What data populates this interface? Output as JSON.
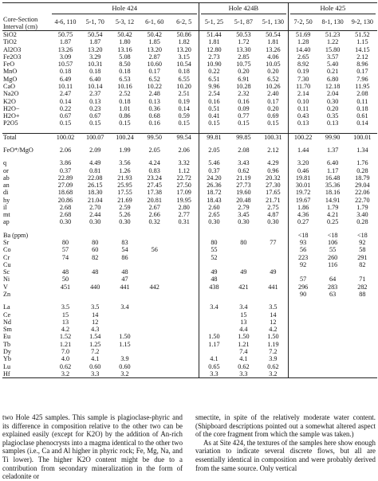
{
  "table": {
    "header_label_lines": [
      "Core-Section",
      "Interval (cm)"
    ],
    "hole_groups": [
      {
        "label": "Hole 424",
        "samples": [
          "4-6, 110",
          "5-1, 70",
          "5-3, 12",
          "6-1, 60",
          "6-2, 5"
        ]
      },
      {
        "label": "Hole 424B",
        "samples": [
          "5-1, 25",
          "5-1, 87",
          "5-1, 130"
        ]
      },
      {
        "label": "Hole 425",
        "samples": [
          "7-2, 50",
          "8-1, 130",
          "9-2, 130"
        ]
      }
    ],
    "sections": [
      [
        {
          "label": "SiO2",
          "values": [
            "50.75",
            "50.54",
            "50.42",
            "50.42",
            "50.86",
            "51.44",
            "50.53",
            "50.54",
            "51.69",
            "51.23",
            "51.52"
          ]
        },
        {
          "label": "TiO2",
          "values": [
            "1.87",
            "1.87",
            "1.80",
            "1.85",
            "1.82",
            "1.81",
            "1.72",
            "1.81",
            "1.28",
            "1.22",
            "1.15"
          ]
        },
        {
          "label": "Al2O3",
          "values": [
            "13.26",
            "13.20",
            "13.16",
            "13.20",
            "13.20",
            "12.80",
            "13.30",
            "13.26",
            "14.40",
            "15.80",
            "14.15"
          ]
        },
        {
          "label": "Fe2O3",
          "values": [
            "3.09",
            "3.29",
            "5.08",
            "2.87",
            "3.15",
            "2.73",
            "2.85",
            "4.06",
            "2.65",
            "3.57",
            "2.12"
          ]
        },
        {
          "label": "FeO",
          "values": [
            "10.57",
            "10.31",
            "8.50",
            "10.60",
            "10.54",
            "10.90",
            "10.75",
            "10.05",
            "8.92",
            "5.40",
            "8.96"
          ]
        },
        {
          "label": "MnO",
          "values": [
            "0.18",
            "0.18",
            "0.18",
            "0.17",
            "0.18",
            "0.22",
            "0.20",
            "0.20",
            "0.19",
            "0.21",
            "0.17"
          ]
        },
        {
          "label": "MgO",
          "values": [
            "6.49",
            "6.40",
            "6.53",
            "6.52",
            "6.55",
            "6.51",
            "6.91",
            "6.52",
            "7.30",
            "6.80",
            "7.96"
          ]
        },
        {
          "label": "CaO",
          "values": [
            "10.11",
            "10.14",
            "10.16",
            "10.22",
            "10.20",
            "9.96",
            "10.28",
            "10.26",
            "11.70",
            "12.18",
            "11.95"
          ]
        },
        {
          "label": "Na2O",
          "values": [
            "2.47",
            "2.37",
            "2.52",
            "2.48",
            "2.51",
            "2.54",
            "2.32",
            "2.40",
            "2.14",
            "2.04",
            "2.08"
          ]
        },
        {
          "label": "K2O",
          "values": [
            "0.14",
            "0.13",
            "0.18",
            "0.13",
            "0.19",
            "0.16",
            "0.16",
            "0.17",
            "0.10",
            "0.30",
            "0.11"
          ]
        },
        {
          "label": "H2O−",
          "values": [
            "0.22",
            "0.23",
            "1.01",
            "0.36",
            "0.14",
            "0.51",
            "0.09",
            "0.20",
            "0.11",
            "0.20",
            "0.18"
          ]
        },
        {
          "label": "H2O+",
          "values": [
            "0.67",
            "0.67",
            "0.86",
            "0.68",
            "0.59",
            "0.41",
            "0.77",
            "0.69",
            "0.43",
            "0.35",
            "0.61"
          ]
        },
        {
          "label": "P2O5",
          "values": [
            "0.15",
            "0.15",
            "0.15",
            "0.16",
            "0.15",
            "0.15",
            "0.15",
            "0.15",
            "0.13",
            "0.13",
            "0.14"
          ]
        }
      ],
      [
        {
          "label": "Total",
          "values": [
            "100.02",
            "100.07",
            "100.24",
            "99.50",
            "99.54",
            "99.81",
            "99.85",
            "100.31",
            "100.22",
            "99.90",
            "100.01"
          ]
        }
      ],
      [
        {
          "label": "FeO*/MgO",
          "values": [
            "2.06",
            "2.09",
            "1.99",
            "2.05",
            "2.06",
            "2.05",
            "2.08",
            "2.12",
            "1.44",
            "1.37",
            "1.34"
          ]
        }
      ],
      [
        {
          "label": "q",
          "values": [
            "3.86",
            "4.49",
            "3.56",
            "4.24",
            "3.32",
            "5.46",
            "3.43",
            "4.29",
            "3.20",
            "6.40",
            "1.76"
          ]
        },
        {
          "label": "or",
          "values": [
            "0.37",
            "0.81",
            "1.26",
            "0.83",
            "1.12",
            "0.37",
            "0.62",
            "0.96",
            "0.46",
            "1.17",
            "0.28"
          ]
        },
        {
          "label": "ab",
          "values": [
            "22.89",
            "22.08",
            "21.93",
            "23.24",
            "22.72",
            "24.20",
            "21.19",
            "20.32",
            "19.81",
            "16.48",
            "18.79"
          ]
        },
        {
          "label": "an",
          "values": [
            "27.09",
            "26.15",
            "25.95",
            "27.45",
            "27.50",
            "26.36",
            "27.73",
            "27.30",
            "30.01",
            "35.36",
            "29.04"
          ]
        },
        {
          "label": "di",
          "values": [
            "18.68",
            "18.30",
            "17.55",
            "17.38",
            "17.09",
            "18.72",
            "19.60",
            "17.65",
            "19.72",
            "18.16",
            "22.06"
          ]
        },
        {
          "label": "hy",
          "values": [
            "20.86",
            "21.04",
            "21.69",
            "20.81",
            "19.95",
            "18.43",
            "20.48",
            "21.71",
            "19.67",
            "14.91",
            "22.70"
          ]
        },
        {
          "label": "il",
          "values": [
            "2.68",
            "2.70",
            "2.59",
            "2.67",
            "2.80",
            "2.60",
            "2.79",
            "2.75",
            "1.86",
            "1.79",
            "1.79"
          ]
        },
        {
          "label": "mt",
          "values": [
            "2.68",
            "2.44",
            "5.26",
            "2.66",
            "2.77",
            "2.65",
            "3.45",
            "4.87",
            "4.36",
            "4.21",
            "3.40"
          ]
        },
        {
          "label": "ap",
          "values": [
            "0.30",
            "0.30",
            "0.30",
            "0.32",
            "0.31",
            "0.30",
            "0.30",
            "0.30",
            "0.27",
            "0.25",
            "0.28"
          ]
        }
      ],
      [
        {
          "label": "Ba (ppm)",
          "values": [
            "",
            "",
            "",
            "",
            "",
            "",
            "",
            "",
            "<18",
            "<18",
            "<18"
          ]
        },
        {
          "label": "Sr",
          "values": [
            "80",
            "80",
            "83",
            "",
            "",
            "80",
            "80",
            "77",
            "93",
            "106",
            "92"
          ]
        },
        {
          "label": "Co",
          "values": [
            "57",
            "60",
            "54",
            "56",
            "",
            "55",
            "",
            "",
            "56",
            "55",
            "58"
          ]
        },
        {
          "label": "Cr",
          "values": [
            "74",
            "82",
            "86",
            "",
            "",
            "52",
            "",
            "",
            "223",
            "260",
            "291"
          ]
        },
        {
          "label": "Cu",
          "values": [
            "",
            "",
            "",
            "",
            "",
            "",
            "",
            "",
            "92",
            "116",
            "82"
          ]
        },
        {
          "label": "Sc",
          "values": [
            "48",
            "48",
            "48",
            "",
            "",
            "49",
            "49",
            "49",
            "",
            "",
            ""
          ]
        },
        {
          "label": "Ni",
          "values": [
            "50",
            "",
            "47",
            "",
            "",
            "48",
            "",
            "",
            "57",
            "64",
            "71"
          ]
        },
        {
          "label": "V",
          "values": [
            "451",
            "440",
            "441",
            "442",
            "",
            "438",
            "421",
            "441",
            "296",
            "283",
            "282"
          ]
        },
        {
          "label": "Zn",
          "values": [
            "",
            "",
            "",
            "",
            "",
            "",
            "",
            "",
            "90",
            "63",
            "88"
          ]
        }
      ],
      [
        {
          "label": "La",
          "values": [
            "3.5",
            "3.5",
            "3.4",
            "",
            "",
            "3.4",
            "3.4",
            "3.5",
            "",
            "",
            ""
          ]
        },
        {
          "label": "Ce",
          "values": [
            "15",
            "14",
            "",
            "",
            "",
            "",
            "15",
            "14",
            "",
            "",
            ""
          ]
        },
        {
          "label": "Nd",
          "values": [
            "13",
            "12",
            "",
            "",
            "",
            "",
            "13",
            "12",
            "",
            "",
            ""
          ]
        },
        {
          "label": "Sm",
          "values": [
            "4.2",
            "4.3",
            "",
            "",
            "",
            "",
            "4.4",
            "4.2",
            "",
            "",
            ""
          ]
        },
        {
          "label": "Eu",
          "values": [
            "1.52",
            "1.54",
            "1.50",
            "",
            "",
            "1.50",
            "1.50",
            "1.50",
            "",
            "",
            ""
          ]
        },
        {
          "label": "Tb",
          "values": [
            "1.21",
            "1.25",
            "1.15",
            "",
            "",
            "1.17",
            "1.21",
            "1.19",
            "",
            "",
            ""
          ]
        },
        {
          "label": "Dy",
          "values": [
            "7.0",
            "7.2",
            "",
            "",
            "",
            "",
            "7.4",
            "7.2",
            "",
            "",
            ""
          ]
        },
        {
          "label": "Yb",
          "values": [
            "4.0",
            "4.1",
            "3.9",
            "",
            "",
            "4.1",
            "4.1",
            "3.9",
            "",
            "",
            ""
          ]
        },
        {
          "label": "Lu",
          "values": [
            "0.62",
            "0.60",
            "0.60",
            "",
            "",
            "0.65",
            "0.62",
            "0.62",
            "",
            "",
            ""
          ]
        },
        {
          "label": "Hf",
          "values": [
            "3.2",
            "3.3",
            "3.2",
            "",
            "",
            "3.3",
            "3.3",
            "3.2",
            "",
            "",
            ""
          ]
        }
      ]
    ]
  },
  "body": {
    "left_paragraph": "two Hole 425 samples. This sample is plagioclase-phyric and its difference in composition relative to the other two can be explained easily (except for K2O) by the addition of An-rich plagioclase phenocrysts into a magma identical to the other two samples (i.e., Ca and Al higher in phyric rock; Fe, Mg, Na, and Ti lower). The higher K2O content might be due to a contribution from secondary mineralization in the form of celadonite or",
    "right_paragraph_1": "smectite, in spite of the relatively moderate water content. (Shipboard descriptions pointed out a somewhat altered aspect of the core fragment from which the sample was taken.)",
    "right_paragraph_2": "As at Site 424, the textures of the samples here show enough variation to indicate several discrete flows, but all are essentially identical in composition and were probably derived from the same source. Only vertical"
  }
}
